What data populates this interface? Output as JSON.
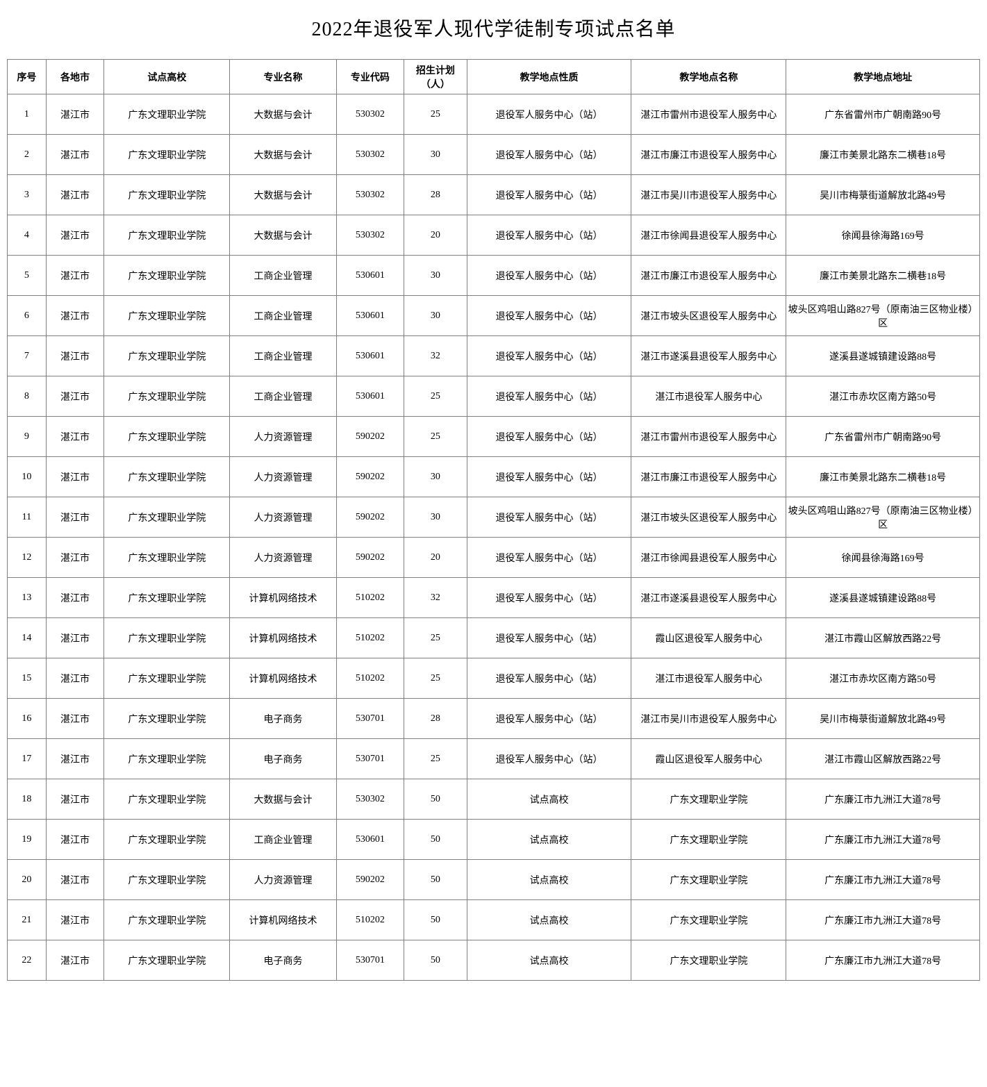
{
  "title": "2022年退役军人现代学徒制专项试点名单",
  "table": {
    "columns": [
      "序号",
      "各地市",
      "试点高校",
      "专业名称",
      "专业代码",
      "招生计划（人）",
      "教学地点性质",
      "教学地点名称",
      "教学地点地址"
    ],
    "col_classes": [
      "col-seq",
      "col-city",
      "col-school",
      "col-major",
      "col-code",
      "col-plan",
      "col-type",
      "col-name",
      "col-addr"
    ],
    "rows": [
      [
        "1",
        "湛江市",
        "广东文理职业学院",
        "大数据与会计",
        "530302",
        "25",
        "退役军人服务中心（站）",
        "湛江市雷州市退役军人服务中心",
        "广东省雷州市广朝南路90号"
      ],
      [
        "2",
        "湛江市",
        "广东文理职业学院",
        "大数据与会计",
        "530302",
        "30",
        "退役军人服务中心（站）",
        "湛江市廉江市退役军人服务中心",
        "廉江市美景北路东二横巷18号"
      ],
      [
        "3",
        "湛江市",
        "广东文理职业学院",
        "大数据与会计",
        "530302",
        "28",
        "退役军人服务中心（站）",
        "湛江市吴川市退役军人服务中心",
        "吴川市梅菉街道解放北路49号"
      ],
      [
        "4",
        "湛江市",
        "广东文理职业学院",
        "大数据与会计",
        "530302",
        "20",
        "退役军人服务中心（站）",
        "湛江市徐闻县退役军人服务中心",
        "徐闻县徐海路169号"
      ],
      [
        "5",
        "湛江市",
        "广东文理职业学院",
        "工商企业管理",
        "530601",
        "30",
        "退役军人服务中心（站）",
        "湛江市廉江市退役军人服务中心",
        "廉江市美景北路东二横巷18号"
      ],
      [
        "6",
        "湛江市",
        "广东文理职业学院",
        "工商企业管理",
        "530601",
        "30",
        "退役军人服务中心（站）",
        "湛江市坡头区退役军人服务中心",
        "坡头区鸡咀山路827号（原南油三区物业楼）区"
      ],
      [
        "7",
        "湛江市",
        "广东文理职业学院",
        "工商企业管理",
        "530601",
        "32",
        "退役军人服务中心（站）",
        "湛江市遂溪县退役军人服务中心",
        "遂溪县遂城镇建设路88号"
      ],
      [
        "8",
        "湛江市",
        "广东文理职业学院",
        "工商企业管理",
        "530601",
        "25",
        "退役军人服务中心（站）",
        "湛江市退役军人服务中心",
        "湛江市赤坎区南方路50号"
      ],
      [
        "9",
        "湛江市",
        "广东文理职业学院",
        "人力资源管理",
        "590202",
        "25",
        "退役军人服务中心（站）",
        "湛江市雷州市退役军人服务中心",
        "广东省雷州市广朝南路90号"
      ],
      [
        "10",
        "湛江市",
        "广东文理职业学院",
        "人力资源管理",
        "590202",
        "30",
        "退役军人服务中心（站）",
        "湛江市廉江市退役军人服务中心",
        "廉江市美景北路东二横巷18号"
      ],
      [
        "11",
        "湛江市",
        "广东文理职业学院",
        "人力资源管理",
        "590202",
        "30",
        "退役军人服务中心（站）",
        "湛江市坡头区退役军人服务中心",
        "坡头区鸡咀山路827号（原南油三区物业楼）区"
      ],
      [
        "12",
        "湛江市",
        "广东文理职业学院",
        "人力资源管理",
        "590202",
        "20",
        "退役军人服务中心（站）",
        "湛江市徐闻县退役军人服务中心",
        "徐闻县徐海路169号"
      ],
      [
        "13",
        "湛江市",
        "广东文理职业学院",
        "计算机网络技术",
        "510202",
        "32",
        "退役军人服务中心（站）",
        "湛江市遂溪县退役军人服务中心",
        "遂溪县遂城镇建设路88号"
      ],
      [
        "14",
        "湛江市",
        "广东文理职业学院",
        "计算机网络技术",
        "510202",
        "25",
        "退役军人服务中心（站）",
        "霞山区退役军人服务中心",
        "湛江市霞山区解放西路22号"
      ],
      [
        "15",
        "湛江市",
        "广东文理职业学院",
        "计算机网络技术",
        "510202",
        "25",
        "退役军人服务中心（站）",
        "湛江市退役军人服务中心",
        "湛江市赤坎区南方路50号"
      ],
      [
        "16",
        "湛江市",
        "广东文理职业学院",
        "电子商务",
        "530701",
        "28",
        "退役军人服务中心（站）",
        "湛江市吴川市退役军人服务中心",
        "吴川市梅菉街道解放北路49号"
      ],
      [
        "17",
        "湛江市",
        "广东文理职业学院",
        "电子商务",
        "530701",
        "25",
        "退役军人服务中心（站）",
        "霞山区退役军人服务中心",
        "湛江市霞山区解放西路22号"
      ],
      [
        "18",
        "湛江市",
        "广东文理职业学院",
        "大数据与会计",
        "530302",
        "50",
        "试点高校",
        "广东文理职业学院",
        "广东廉江市九洲江大道78号"
      ],
      [
        "19",
        "湛江市",
        "广东文理职业学院",
        "工商企业管理",
        "530601",
        "50",
        "试点高校",
        "广东文理职业学院",
        "广东廉江市九洲江大道78号"
      ],
      [
        "20",
        "湛江市",
        "广东文理职业学院",
        "人力资源管理",
        "590202",
        "50",
        "试点高校",
        "广东文理职业学院",
        "广东廉江市九洲江大道78号"
      ],
      [
        "21",
        "湛江市",
        "广东文理职业学院",
        "计算机网络技术",
        "510202",
        "50",
        "试点高校",
        "广东文理职业学院",
        "广东廉江市九洲江大道78号"
      ],
      [
        "22",
        "湛江市",
        "广东文理职业学院",
        "电子商务",
        "530701",
        "50",
        "试点高校",
        "广东文理职业学院",
        "广东廉江市九洲江大道78号"
      ]
    ],
    "border_color": "#808080",
    "background_color": "#ffffff",
    "text_color": "#000000",
    "header_fontsize": 14,
    "cell_fontsize": 14,
    "title_fontsize": 28
  }
}
